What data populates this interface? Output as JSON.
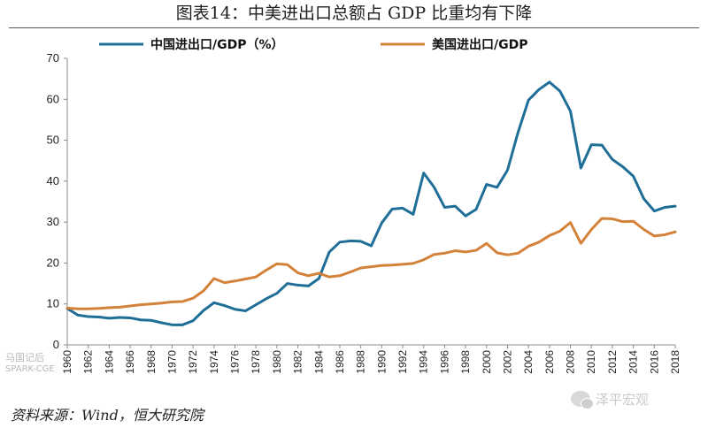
{
  "header": {
    "title": "图表14：中美进出口总额占 GDP 比重均有下降"
  },
  "footer": {
    "source": "资料来源：Wind，恒大研究院"
  },
  "watermarks": {
    "left_top": "马国记后",
    "left_bottom": "SPARK-CGE",
    "right": "泽平宏观",
    "right_icon": "wechat-icon"
  },
  "chart_data": {
    "type": "line",
    "x_range": [
      1960,
      2018
    ],
    "ylim": [
      0,
      70
    ],
    "yticks": [
      0,
      10,
      20,
      30,
      40,
      50,
      60,
      70
    ],
    "xticks": [
      1960,
      1962,
      1964,
      1966,
      1968,
      1970,
      1972,
      1974,
      1976,
      1978,
      1980,
      1982,
      1984,
      1986,
      1988,
      1990,
      1992,
      1994,
      1996,
      1998,
      2000,
      2002,
      2004,
      2006,
      2008,
      2010,
      2012,
      2014,
      2016,
      2018
    ],
    "legend_position": "top",
    "grid": false,
    "x": [
      1960,
      1961,
      1962,
      1963,
      1964,
      1965,
      1966,
      1967,
      1968,
      1969,
      1970,
      1971,
      1972,
      1973,
      1974,
      1975,
      1976,
      1977,
      1978,
      1979,
      1980,
      1981,
      1982,
      1983,
      1984,
      1985,
      1986,
      1987,
      1988,
      1989,
      1990,
      1991,
      1992,
      1993,
      1994,
      1995,
      1996,
      1997,
      1998,
      1999,
      2000,
      2001,
      2002,
      2003,
      2004,
      2005,
      2006,
      2007,
      2008,
      2009,
      2010,
      2011,
      2012,
      2013,
      2014,
      2015,
      2016,
      2017,
      2018
    ],
    "series": [
      {
        "name": "中国进出口/GDP（%）",
        "color": "#1f6e97",
        "values": [
          8.9,
          7.3,
          6.9,
          6.8,
          6.5,
          6.7,
          6.6,
          6.1,
          6.0,
          5.4,
          4.9,
          4.9,
          5.9,
          8.4,
          10.3,
          9.6,
          8.7,
          8.3,
          9.8,
          11.3,
          12.6,
          15.0,
          14.6,
          14.4,
          16.2,
          22.7,
          25.1,
          25.4,
          25.3,
          24.2,
          29.8,
          33.2,
          33.4,
          31.9,
          42.0,
          38.5,
          33.6,
          33.9,
          31.5,
          33.1,
          39.2,
          38.5,
          42.7,
          51.9,
          59.8,
          62.4,
          64.2,
          62.0,
          57.1,
          43.2,
          48.9,
          48.8,
          45.3,
          43.5,
          41.2,
          35.7,
          32.7,
          33.6,
          33.9
        ]
      },
      {
        "name": "美国进出口/GDP",
        "color": "#d4823a",
        "values": [
          9.0,
          8.8,
          8.8,
          8.9,
          9.1,
          9.2,
          9.5,
          9.8,
          10.0,
          10.2,
          10.5,
          10.6,
          11.4,
          13.2,
          16.2,
          15.2,
          15.6,
          16.1,
          16.6,
          18.3,
          19.8,
          19.6,
          17.6,
          16.9,
          17.5,
          16.6,
          16.9,
          17.8,
          18.8,
          19.1,
          19.4,
          19.5,
          19.7,
          19.9,
          20.8,
          22.1,
          22.4,
          23.0,
          22.7,
          23.1,
          24.8,
          22.5,
          22.0,
          22.4,
          24.1,
          25.1,
          26.7,
          27.8,
          29.9,
          24.8,
          28.2,
          30.9,
          30.8,
          30.1,
          30.2,
          28.2,
          26.6,
          26.9,
          27.6
        ]
      }
    ]
  }
}
